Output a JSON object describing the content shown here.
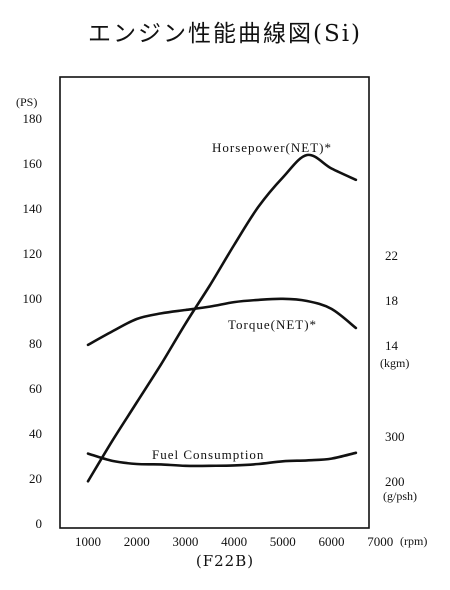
{
  "title": "エンジン性能曲線図(Si)",
  "engine_code": "(F22B)",
  "chart_data": {
    "type": "line",
    "title": "エンジン性能曲線図(Si)",
    "xlabel": "(rpm)",
    "ylabel_left": "(PS)",
    "ylabel_right_torque": "(kgm)",
    "ylabel_right_fuel": "(g/psh)",
    "xlim": [
      500,
      7000
    ],
    "ylim": [
      0,
      190
    ],
    "x_ticks": [
      "1000",
      "2000",
      "3000",
      "4000",
      "5000",
      "6000",
      "7000"
    ],
    "y_ticks_left": [
      "0",
      "20",
      "40",
      "60",
      "80",
      "100",
      "120",
      "140",
      "160",
      "180"
    ],
    "y_ticks_right_torque": [
      {
        "label": "22",
        "value": 22
      },
      {
        "label": "18",
        "value": 18
      },
      {
        "label": "14",
        "value": 14
      }
    ],
    "y_ticks_right_fuel": [
      {
        "label": "300",
        "value": 300
      },
      {
        "label": "200",
        "value": 200
      }
    ],
    "grid": false,
    "series": [
      {
        "name": "Horsepower(NET)*",
        "unit": "PS",
        "x": [
          1000,
          1500,
          2000,
          2500,
          3000,
          3500,
          4000,
          4500,
          5000,
          5500,
          6000,
          6500
        ],
        "y": [
          19,
          37,
          54,
          71,
          89,
          106,
          124,
          141,
          154,
          164,
          158,
          153
        ]
      },
      {
        "name": "Torque(NET)*",
        "unit": "kgm",
        "x": [
          1000,
          1500,
          2000,
          2500,
          3000,
          3500,
          4000,
          4500,
          5000,
          5500,
          6000,
          6500
        ],
        "y": [
          14.1,
          15.3,
          16.4,
          16.9,
          17.2,
          17.5,
          17.9,
          18.1,
          18.2,
          18.0,
          17.3,
          15.6
        ]
      },
      {
        "name": "Fuel Consumption",
        "unit": "g/psh",
        "x": [
          1000,
          1500,
          2000,
          2500,
          3000,
          3500,
          4000,
          4500,
          5000,
          5500,
          6000,
          6500
        ],
        "y": [
          263,
          247,
          240,
          239,
          236,
          236,
          237,
          240,
          246,
          248,
          252,
          265
        ]
      }
    ]
  }
}
